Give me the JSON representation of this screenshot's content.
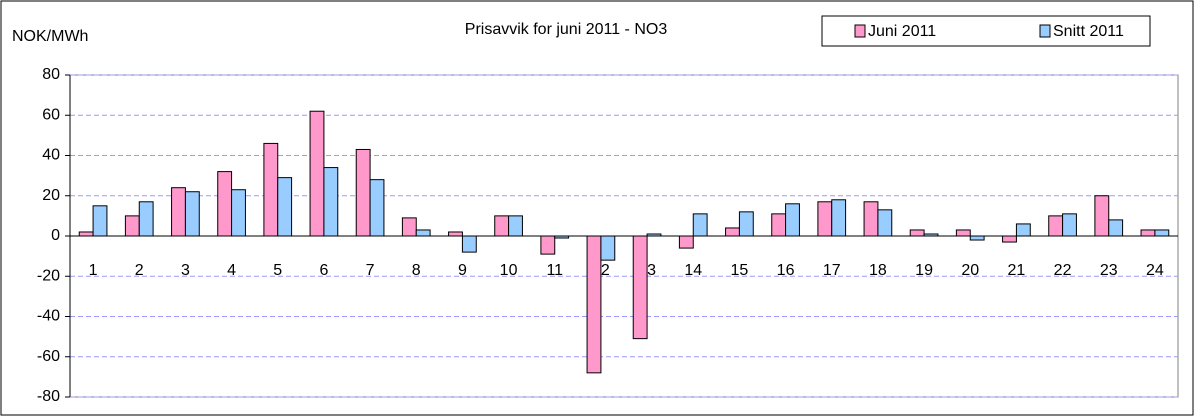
{
  "chart_data": {
    "type": "bar",
    "title": "Prisavvik for juni 2011 - NO3",
    "y_label": "NOK/MWh",
    "categories": [
      "1",
      "2",
      "3",
      "4",
      "5",
      "6",
      "7",
      "8",
      "9",
      "10",
      "11",
      "12",
      "13",
      "14",
      "15",
      "16",
      "17",
      "18",
      "19",
      "20",
      "21",
      "22",
      "23",
      "24"
    ],
    "series": [
      {
        "name": "Juni 2011",
        "color": "#ff99cc",
        "values": [
          2,
          10,
          24,
          32,
          46,
          62,
          43,
          9,
          2,
          10,
          -9,
          -68,
          -51,
          -6,
          4,
          11,
          17,
          17,
          3,
          3,
          -3,
          10,
          20,
          3
        ]
      },
      {
        "name": "Snitt 2011",
        "color": "#99ccff",
        "values": [
          15,
          17,
          22,
          23,
          29,
          34,
          28,
          3,
          -8,
          10,
          -1,
          -12,
          1,
          11,
          12,
          16,
          18,
          13,
          1,
          -2,
          6,
          11,
          8,
          3
        ]
      }
    ],
    "ylim": [
      -80,
      80
    ],
    "yticks": [
      -80,
      -60,
      -40,
      -20,
      0,
      20,
      40,
      60,
      80
    ],
    "grid": true,
    "legend": "top-right"
  }
}
